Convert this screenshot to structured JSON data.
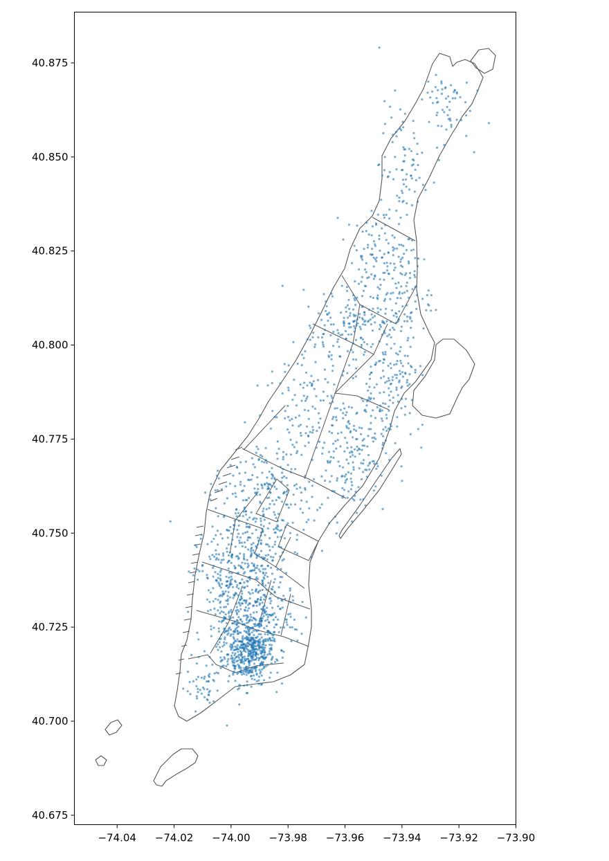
{
  "chart_data": {
    "type": "scatter",
    "title": "",
    "xlabel": "",
    "ylabel": "",
    "xlim": [
      -74.055,
      -73.9
    ],
    "ylim": [
      40.6725,
      40.8885
    ],
    "x_ticks": [
      -74.04,
      -74.02,
      -74.0,
      -73.98,
      -73.96,
      -73.94,
      -73.92,
      -73.9
    ],
    "x_tick_labels": [
      "−74.04",
      "−74.02",
      "−74.00",
      "−73.98",
      "−73.96",
      "−73.94",
      "−73.92",
      "−73.90"
    ],
    "y_ticks": [
      40.675,
      40.7,
      40.725,
      40.75,
      40.775,
      40.8,
      40.825,
      40.85,
      40.875
    ],
    "y_tick_labels": [
      "40.675",
      "40.700",
      "40.725",
      "40.750",
      "40.775",
      "40.800",
      "40.825",
      "40.850",
      "40.875"
    ],
    "grid": false,
    "point_color": "#1f77b4",
    "boundary_color": "#555555",
    "point_clusters": [
      {
        "lon": -73.993,
        "lat": 40.718,
        "sd_lon": 0.004,
        "sd_lat": 0.004,
        "n": 360
      },
      {
        "lon": -73.998,
        "lat": 40.723,
        "sd_lon": 0.006,
        "sd_lat": 0.006,
        "n": 220
      },
      {
        "lon": -73.988,
        "lat": 40.727,
        "sd_lon": 0.006,
        "sd_lat": 0.006,
        "n": 160
      },
      {
        "lon": -74.002,
        "lat": 40.738,
        "sd_lon": 0.005,
        "sd_lat": 0.006,
        "n": 150
      },
      {
        "lon": -73.99,
        "lat": 40.741,
        "sd_lon": 0.005,
        "sd_lat": 0.006,
        "n": 130
      },
      {
        "lon": -73.995,
        "lat": 40.752,
        "sd_lon": 0.007,
        "sd_lat": 0.007,
        "n": 120
      },
      {
        "lon": -73.982,
        "lat": 40.755,
        "sd_lon": 0.007,
        "sd_lat": 0.007,
        "n": 90
      },
      {
        "lon": -73.987,
        "lat": 40.765,
        "sd_lon": 0.007,
        "sd_lat": 0.006,
        "n": 90
      },
      {
        "lon": -73.958,
        "lat": 40.771,
        "sd_lon": 0.006,
        "sd_lat": 0.008,
        "n": 150
      },
      {
        "lon": -73.95,
        "lat": 40.781,
        "sd_lon": 0.006,
        "sd_lat": 0.008,
        "n": 90
      },
      {
        "lon": -73.944,
        "lat": 40.795,
        "sd_lon": 0.005,
        "sd_lat": 0.007,
        "n": 100
      },
      {
        "lon": -73.975,
        "lat": 40.784,
        "sd_lon": 0.006,
        "sd_lat": 0.01,
        "n": 90
      },
      {
        "lon": -73.965,
        "lat": 40.801,
        "sd_lon": 0.005,
        "sd_lat": 0.007,
        "n": 70
      },
      {
        "lon": -73.954,
        "lat": 40.807,
        "sd_lon": 0.005,
        "sd_lat": 0.004,
        "n": 90
      },
      {
        "lon": -73.948,
        "lat": 40.823,
        "sd_lon": 0.006,
        "sd_lat": 0.007,
        "n": 130
      },
      {
        "lon": -73.938,
        "lat": 40.813,
        "sd_lon": 0.004,
        "sd_lat": 0.006,
        "n": 60
      },
      {
        "lon": -73.94,
        "lat": 40.847,
        "sd_lon": 0.004,
        "sd_lat": 0.009,
        "n": 80
      },
      {
        "lon": -73.926,
        "lat": 40.864,
        "sd_lon": 0.005,
        "sd_lat": 0.005,
        "n": 60
      },
      {
        "lon": -74.01,
        "lat": 40.709,
        "sd_lon": 0.003,
        "sd_lat": 0.003,
        "n": 40
      }
    ]
  }
}
